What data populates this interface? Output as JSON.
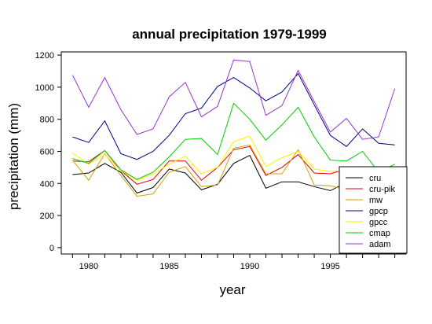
{
  "chart_data": {
    "type": "line",
    "title": "annual precipitation 1979-1999",
    "xlabel": "year",
    "ylabel": "precipitation (mm)",
    "xlim": [
      1978.3,
      1999.7
    ],
    "ylim": [
      -40,
      1220
    ],
    "x_ticks": [
      1980,
      1985,
      1990,
      1995
    ],
    "y_ticks": [
      0,
      200,
      400,
      600,
      800,
      1000,
      1200
    ],
    "x": [
      1979,
      1980,
      1981,
      1982,
      1983,
      1984,
      1985,
      1986,
      1987,
      1988,
      1989,
      1990,
      1991,
      1992,
      1993,
      1994,
      1995,
      1996,
      1997,
      1998,
      1999
    ],
    "legend_position": "bottom-right",
    "grid": false,
    "series": [
      {
        "name": "cru",
        "color": "#000000",
        "values": [
          455,
          465,
          525,
          470,
          340,
          375,
          490,
          465,
          360,
          395,
          525,
          575,
          370,
          410,
          410,
          380,
          355,
          405,
          395,
          400,
          420
        ]
      },
      {
        "name": "cru-pik",
        "color": "#e00000",
        "values": [
          540,
          535,
          605,
          480,
          395,
          425,
          540,
          540,
          420,
          500,
          610,
          630,
          450,
          500,
          580,
          465,
          460,
          490,
          470,
          480,
          495
        ]
      },
      {
        "name": "mw",
        "color": "#d4a000",
        "values": [
          545,
          420,
          585,
          450,
          320,
          335,
          470,
          505,
          380,
          390,
          620,
          640,
          460,
          460,
          610,
          390,
          385,
          360,
          400,
          410,
          430
        ]
      },
      {
        "name": "gpcp",
        "color": "#000080",
        "values": [
          690,
          655,
          790,
          585,
          550,
          600,
          700,
          835,
          870,
          1005,
          1060,
          995,
          915,
          970,
          1085,
          890,
          700,
          630,
          740,
          650,
          640
        ]
      },
      {
        "name": "gpcc",
        "color": "#ffee00",
        "values": [
          590,
          520,
          580,
          480,
          420,
          460,
          520,
          570,
          460,
          500,
          660,
          695,
          505,
          560,
          600,
          490,
          475,
          480,
          450,
          460,
          480
        ]
      },
      {
        "name": "cmap",
        "color": "#00cc00",
        "values": [
          555,
          525,
          605,
          485,
          425,
          470,
          565,
          675,
          680,
          580,
          900,
          800,
          670,
          765,
          875,
          690,
          545,
          540,
          600,
          470,
          520
        ]
      },
      {
        "name": "adam",
        "color": "#9933cc",
        "values": [
          1075,
          875,
          1060,
          860,
          705,
          740,
          940,
          1030,
          815,
          880,
          1170,
          1160,
          825,
          885,
          1105,
          910,
          720,
          805,
          675,
          690,
          990
        ]
      }
    ]
  }
}
